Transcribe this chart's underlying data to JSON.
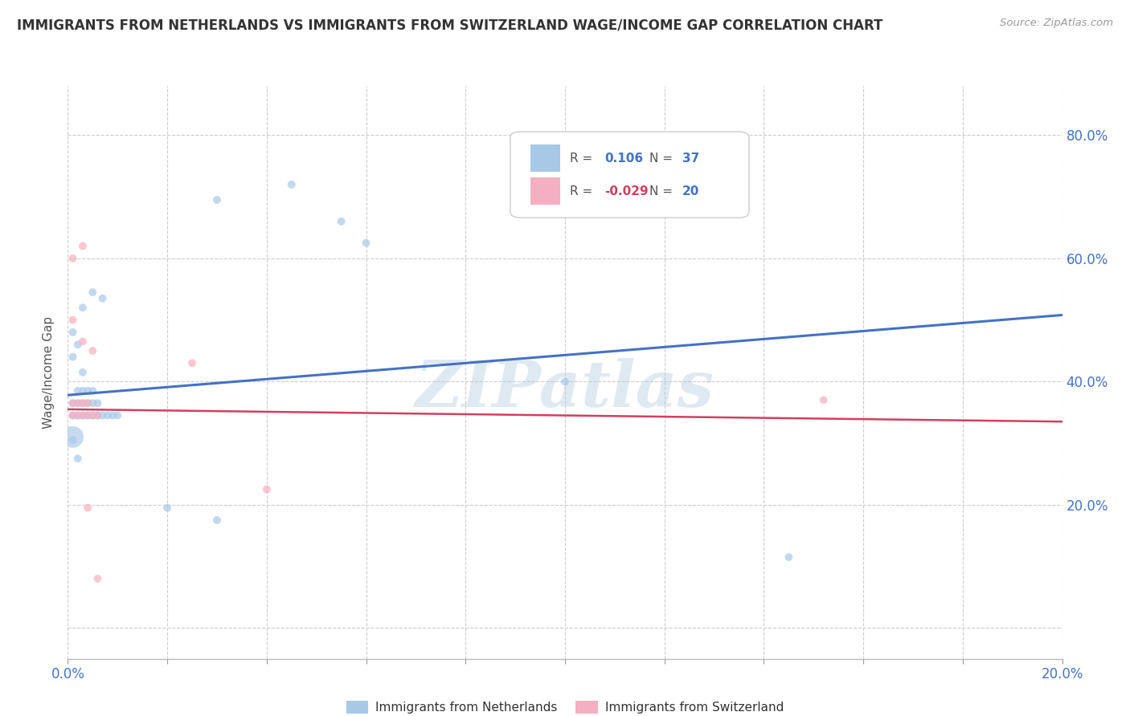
{
  "title": "IMMIGRANTS FROM NETHERLANDS VS IMMIGRANTS FROM SWITZERLAND WAGE/INCOME GAP CORRELATION CHART",
  "source": "Source: ZipAtlas.com",
  "ylabel": "Wage/Income Gap",
  "xlim": [
    0.0,
    0.2
  ],
  "ylim": [
    -0.05,
    0.88
  ],
  "netherlands_x": [
    0.001,
    0.002,
    0.003,
    0.004,
    0.005,
    0.006,
    0.007,
    0.008,
    0.009,
    0.01,
    0.001,
    0.002,
    0.003,
    0.004,
    0.005,
    0.006,
    0.002,
    0.003,
    0.004,
    0.005,
    0.001,
    0.003,
    0.005,
    0.007,
    0.02,
    0.03,
    0.001,
    0.002,
    0.06,
    0.001,
    0.002,
    0.003,
    0.03,
    0.045,
    0.055,
    0.1,
    0.145
  ],
  "netherlands_y": [
    0.345,
    0.345,
    0.345,
    0.345,
    0.345,
    0.345,
    0.345,
    0.345,
    0.345,
    0.345,
    0.365,
    0.365,
    0.365,
    0.365,
    0.365,
    0.365,
    0.385,
    0.385,
    0.385,
    0.385,
    0.48,
    0.52,
    0.545,
    0.535,
    0.195,
    0.175,
    0.305,
    0.275,
    0.625,
    0.44,
    0.46,
    0.415,
    0.695,
    0.72,
    0.66,
    0.4,
    0.115
  ],
  "netherlands_sizes": [
    50,
    50,
    50,
    50,
    50,
    50,
    50,
    50,
    50,
    50,
    50,
    50,
    50,
    50,
    50,
    50,
    50,
    50,
    50,
    50,
    50,
    50,
    50,
    50,
    50,
    50,
    50,
    50,
    50,
    50,
    50,
    50,
    50,
    50,
    50,
    50,
    50
  ],
  "switzerland_x": [
    0.001,
    0.002,
    0.003,
    0.004,
    0.005,
    0.006,
    0.001,
    0.002,
    0.003,
    0.004,
    0.001,
    0.003,
    0.001,
    0.003,
    0.005,
    0.025,
    0.04,
    0.004,
    0.006,
    0.152
  ],
  "switzerland_y": [
    0.345,
    0.345,
    0.345,
    0.345,
    0.345,
    0.345,
    0.365,
    0.365,
    0.365,
    0.365,
    0.6,
    0.62,
    0.5,
    0.465,
    0.45,
    0.43,
    0.225,
    0.195,
    0.08,
    0.37
  ],
  "switzerland_sizes": [
    50,
    50,
    50,
    50,
    50,
    50,
    50,
    50,
    50,
    50,
    50,
    50,
    50,
    50,
    50,
    50,
    50,
    50,
    50,
    50
  ],
  "netherlands_large_x": [
    0.001
  ],
  "netherlands_large_y": [
    0.31
  ],
  "netherlands_large_size": [
    380
  ],
  "netherlands_color": "#a8c8e8",
  "switzerland_color": "#f4b0c0",
  "netherlands_line_color": "#4472c4",
  "switzerland_line_color": "#d04060",
  "nl_line_x0": 0.0,
  "nl_line_y0": 0.378,
  "nl_line_x1": 0.2,
  "nl_line_y1": 0.508,
  "ch_line_x0": 0.0,
  "ch_line_y0": 0.355,
  "ch_line_x1": 0.2,
  "ch_line_y1": 0.335,
  "r_netherlands": 0.106,
  "n_netherlands": 37,
  "r_switzerland": -0.029,
  "n_switzerland": 20,
  "watermark": "ZIPatlas",
  "background_color": "#ffffff",
  "grid_color": "#cccccc"
}
